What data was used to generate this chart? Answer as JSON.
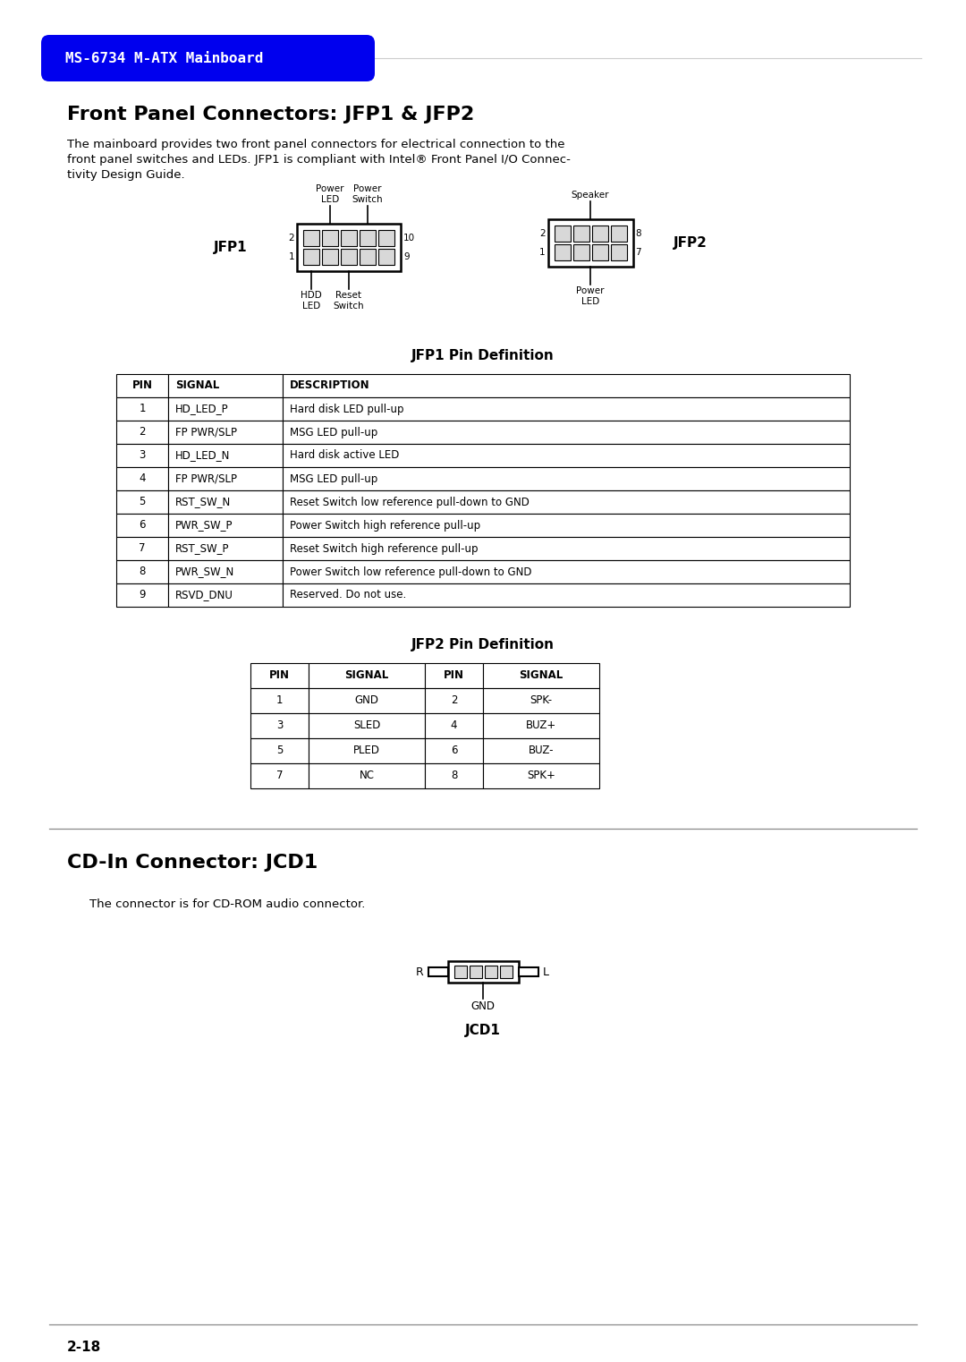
{
  "bg_color": "#ffffff",
  "header_bg": "#0000ee",
  "header_text": "MS-6734 M-ATX Mainboard",
  "header_text_color": "#ffffff",
  "section1_title": "Front Panel Connectors: JFP1 & JFP2",
  "section1_body1": "The mainboard provides two front panel connectors for electrical connection to the",
  "section1_body2": "front panel switches and LEDs. JFP1 is compliant with Intel® Front Panel I/O Connec-",
  "section1_body3": "tivity Design Guide.",
  "jfp1_label": "JFP1",
  "jfp2_label": "JFP2",
  "jfp2_top_label": "Speaker",
  "jfp2_bottom_label": "Power\nLED",
  "jfp1_table_title": "JFP1 Pin Definition",
  "jfp1_table_headers": [
    "PIN",
    "SIGNAL",
    "DESCRIPTION"
  ],
  "jfp1_table_data": [
    [
      "1",
      "HD_LED_P",
      "Hard disk LED pull-up"
    ],
    [
      "2",
      "FP PWR/SLP",
      "MSG LED pull-up"
    ],
    [
      "3",
      "HD_LED_N",
      "Hard disk active LED"
    ],
    [
      "4",
      "FP PWR/SLP",
      "MSG LED pull-up"
    ],
    [
      "5",
      "RST_SW_N",
      "Reset Switch low reference pull-down to GND"
    ],
    [
      "6",
      "PWR_SW_P",
      "Power Switch high reference pull-up"
    ],
    [
      "7",
      "RST_SW_P",
      "Reset Switch high reference pull-up"
    ],
    [
      "8",
      "PWR_SW_N",
      "Power Switch low reference pull-down to GND"
    ],
    [
      "9",
      "RSVD_DNU",
      "Reserved. Do not use."
    ]
  ],
  "jfp2_table_title": "JFP2 Pin Definition",
  "jfp2_table_headers": [
    "PIN",
    "SIGNAL",
    "PIN",
    "SIGNAL"
  ],
  "jfp2_table_data": [
    [
      "1",
      "GND",
      "2",
      "SPK-"
    ],
    [
      "3",
      "SLED",
      "4",
      "BUZ+"
    ],
    [
      "5",
      "PLED",
      "6",
      "BUZ-"
    ],
    [
      "7",
      "NC",
      "8",
      "SPK+"
    ]
  ],
  "section2_title": "CD-In Connector: JCD1",
  "section2_body": "The connector is for CD-ROM audio connector.",
  "jcd1_label": "JCD1",
  "jcd1_bottom_label": "GND",
  "page_number": "2-18"
}
